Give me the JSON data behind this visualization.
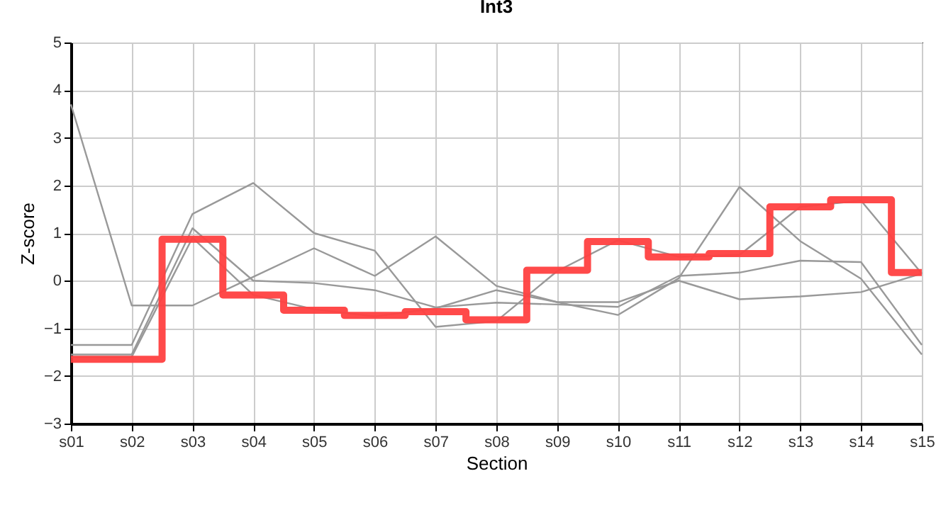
{
  "chart_data": {
    "type": "line",
    "title": "Int3",
    "xlabel": "Section",
    "ylabel": "Z-score",
    "categories": [
      "s01",
      "s02",
      "s03",
      "s04",
      "s05",
      "s06",
      "s07",
      "s08",
      "s09",
      "s10",
      "s11",
      "s12",
      "s13",
      "s14",
      "s15"
    ],
    "ylim": [
      -3,
      5
    ],
    "yticks": [
      -3,
      -2,
      -1,
      0,
      1,
      2,
      3,
      4,
      5
    ],
    "grid": true,
    "series": [
      {
        "type": "line",
        "color": "#999999",
        "values": [
          3.7,
          -0.52,
          -0.52,
          0.08,
          0.68,
          0.1,
          0.93,
          -0.11,
          -0.45,
          -0.72,
          0.05,
          1.97,
          0.83,
          0.04,
          -1.55
        ]
      },
      {
        "type": "line",
        "color": "#999999",
        "values": [
          -1.35,
          -1.35,
          1.4,
          2.05,
          1.0,
          0.63,
          -0.97,
          -0.85,
          0.2,
          0.85,
          0.5,
          0.54,
          1.55,
          1.68,
          0.15
        ]
      },
      {
        "type": "line",
        "color": "#999999",
        "values": [
          -1.55,
          -1.55,
          1.1,
          0.0,
          -0.05,
          -0.2,
          -0.56,
          -0.46,
          -0.5,
          -0.55,
          0.1,
          0.17,
          0.42,
          0.39,
          -1.35
        ]
      },
      {
        "type": "line",
        "color": "#999999",
        "values": [
          -1.6,
          -1.6,
          0.9,
          -0.3,
          -0.6,
          -0.75,
          -0.58,
          -0.2,
          -0.45,
          -0.45,
          0.0,
          -0.39,
          -0.33,
          -0.24,
          0.15
        ]
      },
      {
        "type": "step",
        "color": "#ff4040",
        "values": [
          -1.65,
          -1.65,
          0.87,
          -0.3,
          -0.62,
          -0.73,
          -0.65,
          -0.82,
          0.22,
          0.82,
          0.5,
          0.57,
          1.55,
          1.7,
          0.17
        ]
      }
    ]
  }
}
